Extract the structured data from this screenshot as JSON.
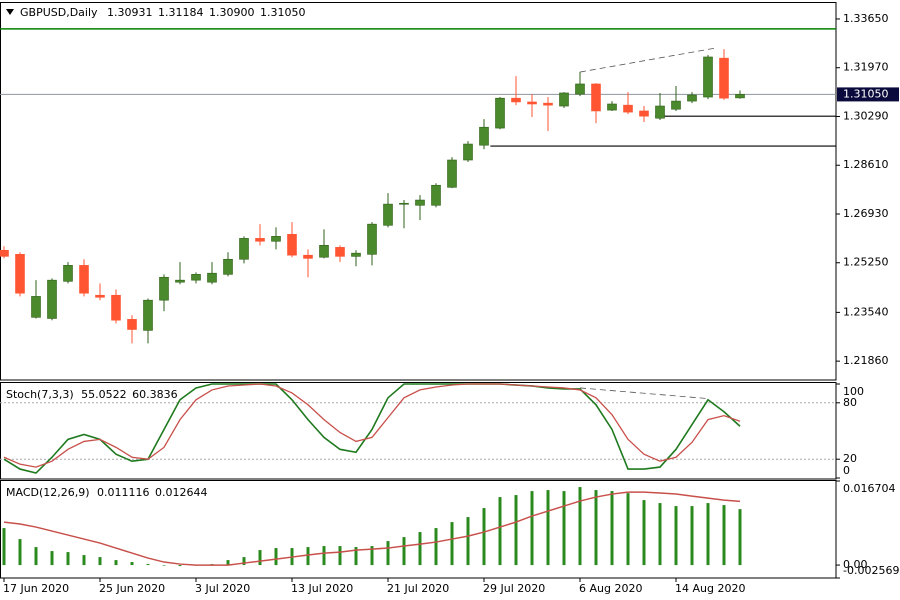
{
  "chart_data": [
    {
      "type": "candlestick",
      "title": "GBPUSD,Daily",
      "header_values": [
        "1.30931",
        "1.31184",
        "1.30900",
        "1.31050"
      ],
      "open": [
        1.2568,
        1.2554,
        1.2337,
        1.2333,
        1.2461,
        1.2516,
        1.2413,
        1.2413,
        1.233,
        1.2292,
        1.2396,
        1.2458,
        1.2465,
        1.2458,
        1.2485,
        1.2537,
        1.2609,
        1.2599,
        1.2623,
        1.2551,
        1.2544,
        1.2578,
        1.2547,
        1.2554,
        1.2654,
        1.2727,
        1.2723,
        1.2723,
        1.2785,
        1.2879,
        1.293,
        1.2989,
        1.3092,
        1.3079,
        1.3075,
        1.3065,
        1.3106,
        1.3141,
        1.3051,
        1.3068,
        1.3048,
        1.3023,
        1.3054,
        1.3082,
        1.3096,
        1.323,
        1.30931
      ],
      "high": [
        1.2582,
        1.2561,
        1.2465,
        1.2471,
        1.2527,
        1.2537,
        1.2454,
        1.2433,
        1.2344,
        1.2402,
        1.2485,
        1.2527,
        1.2492,
        1.2527,
        1.2561,
        1.2616,
        1.2658,
        1.2647,
        1.2665,
        1.2571,
        1.264,
        1.2585,
        1.2568,
        1.2665,
        1.2765,
        1.2741,
        1.2758,
        1.2799,
        1.2889,
        1.2944,
        1.302,
        1.3096,
        1.3168,
        1.3106,
        1.3096,
        1.3113,
        1.3182,
        1.3144,
        1.3082,
        1.3113,
        1.3065,
        1.311,
        1.3134,
        1.3113,
        1.3241,
        1.3261,
        1.31184
      ],
      "low": [
        1.254,
        1.2409,
        1.2333,
        1.2327,
        1.2454,
        1.2409,
        1.2396,
        1.2316,
        1.2247,
        1.2247,
        1.2358,
        1.2451,
        1.2454,
        1.2451,
        1.2478,
        1.2523,
        1.2585,
        1.2571,
        1.2544,
        1.2475,
        1.254,
        1.2527,
        1.2513,
        1.2516,
        1.2647,
        1.2644,
        1.2672,
        1.2716,
        1.2782,
        1.2872,
        1.2916,
        1.2985,
        1.3068,
        1.3027,
        1.2979,
        1.3058,
        1.3099,
        1.3006,
        1.3048,
        1.3037,
        1.301,
        1.3017,
        1.3048,
        1.3075,
        1.3089,
        1.3086,
        1.309
      ],
      "close": [
        1.2547,
        1.242,
        1.2409,
        1.2465,
        1.2516,
        1.242,
        1.2406,
        1.2327,
        1.2295,
        1.2396,
        1.2475,
        1.2465,
        1.2485,
        1.2489,
        1.2537,
        1.2609,
        1.2599,
        1.2616,
        1.2551,
        1.254,
        1.2585,
        1.2547,
        1.2558,
        1.2658,
        1.2727,
        1.273,
        1.2741,
        1.2792,
        1.2879,
        1.2934,
        1.2992,
        1.3092,
        1.3079,
        1.3072,
        1.3068,
        1.311,
        1.3141,
        1.3048,
        1.3072,
        1.3044,
        1.303,
        1.3065,
        1.3082,
        1.3103,
        1.3234,
        1.3092,
        1.3105
      ],
      "up_color": "#4a8a2c",
      "down_color": "#ff5533",
      "ylim": [
        1.2121,
        1.342
      ],
      "yticks": [
        {
          "value": 1.3365,
          "label": "1.33650"
        },
        {
          "value": 1.3197,
          "label": "1.31970"
        },
        {
          "value": 1.3029,
          "label": "1.30290"
        },
        {
          "value": 1.2861,
          "label": "1.28610"
        },
        {
          "value": 1.2693,
          "label": "1.26930"
        },
        {
          "value": 1.2525,
          "label": "1.25250"
        },
        {
          "value": 1.2354,
          "label": "1.23540"
        },
        {
          "value": 1.2186,
          "label": "1.21860"
        }
      ],
      "grid": false,
      "levels": [
        {
          "value": 1.3331,
          "color": "#008000"
        },
        {
          "value": 1.303,
          "color": "#000000",
          "from": 40.7
        },
        {
          "value": 1.2927,
          "color": "#000000",
          "from": 30.4
        }
      ],
      "trendline": {
        "from": [
          36,
          1.3182
        ],
        "to": [
          44.5,
          1.3265
        ]
      },
      "last_price": {
        "value": 1.3105,
        "label": "1.31050"
      }
    },
    {
      "type": "line",
      "title": "Stoch(7,3,3)",
      "series": [
        {
          "color": "#1f7a1f",
          "values": [
            20.0,
            9.5,
            5.3,
            22.1,
            41.1,
            46.3,
            41.1,
            25.3,
            17.9,
            20.0,
            51.6,
            83.2,
            95.8,
            100,
            100,
            100,
            100,
            100,
            83.2,
            62.1,
            43.2,
            30.5,
            27.4,
            51.6,
            85.3,
            100,
            100,
            100,
            100,
            100,
            100,
            100,
            98.9,
            97.9,
            95.8,
            94.7,
            94.7,
            77.9,
            51.6,
            9.5,
            9.5,
            11.6,
            30.5,
            56.8,
            83.2,
            70.5,
            55.0522
          ]
        },
        {
          "color": "#c8504b",
          "values": [
            22.1,
            14.7,
            11.6,
            17.9,
            30.5,
            38.9,
            41.1,
            32.6,
            22.1,
            20.0,
            32.6,
            62.1,
            83.2,
            93.7,
            97.9,
            98.9,
            100,
            97.9,
            90.5,
            77.9,
            62.1,
            48.4,
            38.9,
            43.2,
            64.2,
            85.3,
            93.7,
            96.8,
            98.9,
            100,
            100,
            100,
            98.9,
            97.9,
            96.8,
            95.8,
            93.7,
            85.3,
            67.4,
            41.1,
            25.3,
            17.9,
            22.1,
            37.9,
            62.1,
            66.3,
            60.3836
          ]
        }
      ],
      "ylim": [
        0,
        100
      ],
      "yticks": [
        100,
        80,
        20,
        0
      ],
      "levels": [
        80,
        20
      ],
      "trendline": {
        "from": [
          36,
          95.8
        ],
        "to": [
          44,
          84.5
        ]
      }
    },
    {
      "type": "bar",
      "title": "MACD(12,26,9)",
      "categories": [
        "17 Jun 2020",
        null,
        null,
        null,
        null,
        null,
        "25 Jun 2020",
        null,
        null,
        null,
        null,
        null,
        "3 Jul 2020",
        null,
        null,
        null,
        null,
        null,
        "13 Jul 2020",
        null,
        null,
        null,
        null,
        null,
        "21 Jul 2020",
        null,
        null,
        null,
        null,
        null,
        "29 Jul 2020",
        null,
        null,
        null,
        null,
        null,
        "6 Aug 2020",
        null,
        null,
        null,
        null,
        null,
        "14 Aug 2020",
        null,
        null,
        null,
        null
      ],
      "values": [
        0.00735,
        0.00517,
        0.00358,
        0.00278,
        0.00258,
        0.00199,
        0.00159,
        0.00099,
        0.0006,
        0.0002,
        -0.0001,
        -0.0002,
        -0.0001,
        0.0002,
        0.00099,
        0.00159,
        0.00298,
        0.00338,
        0.00338,
        0.00358,
        0.00378,
        0.00378,
        0.00358,
        0.00378,
        0.00477,
        0.00556,
        0.00656,
        0.00735,
        0.00854,
        0.00954,
        0.01133,
        0.01351,
        0.01391,
        0.0147,
        0.0149,
        0.0147,
        0.0155,
        0.0149,
        0.0147,
        0.0143,
        0.01291,
        0.01232,
        0.01172,
        0.01172,
        0.01232,
        0.01192,
        0.011116
      ],
      "color": "#2b8a1e",
      "signal": {
        "color": "#c8504b",
        "values": [
          0.00854,
          0.00815,
          0.00755,
          0.00676,
          0.00596,
          0.00517,
          0.00437,
          0.00338,
          0.00238,
          0.00139,
          0.0006,
          0.0002,
          0,
          0,
          0,
          0.0004,
          0.00079,
          0.00119,
          0.00159,
          0.00199,
          0.00238,
          0.00258,
          0.00298,
          0.00318,
          0.00338,
          0.00378,
          0.00417,
          0.00457,
          0.00517,
          0.00576,
          0.00656,
          0.00755,
          0.00854,
          0.00974,
          0.01073,
          0.01172,
          0.01272,
          0.01351,
          0.01411,
          0.0145,
          0.0145,
          0.01431,
          0.01411,
          0.01371,
          0.01331,
          0.01291,
          0.012644
        ]
      },
      "ylim": [
        -0.002569,
        0.016704
      ],
      "yticks": [
        0.016704,
        {
          "value": 0,
          "label": "0.00"
        },
        -0.002569
      ]
    }
  ]
}
